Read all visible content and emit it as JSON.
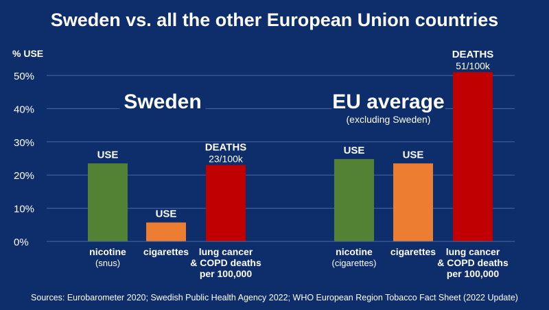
{
  "chart_data": {
    "type": "bar",
    "title": "Sweden vs. all the other European Union countries",
    "ylabel": "% USE",
    "ylim": [
      0,
      50
    ],
    "yticks": [
      "0%",
      "10%",
      "20%",
      "30%",
      "40%",
      "50%"
    ],
    "grid": true,
    "groups": [
      {
        "name": "Sweden",
        "subtitle": "",
        "bars": [
          {
            "value": 23.5,
            "color": "#548235",
            "top_label": "USE",
            "value_label": "",
            "xlabel": "nicotine",
            "xsublabel": "(snus)"
          },
          {
            "value": 5.7,
            "color": "#ed7d31",
            "top_label": "USE",
            "value_label": "",
            "xlabel": "cigarettes",
            "xsublabel": ""
          },
          {
            "value": 23,
            "color": "#c00000",
            "top_label": "DEATHS",
            "value_label": "23/100k",
            "xlabel": "lung cancer\n& COPD deaths\nper 100,000",
            "xsublabel": ""
          }
        ]
      },
      {
        "name": "EU average",
        "subtitle": "(excluding Sweden)",
        "bars": [
          {
            "value": 24.8,
            "color": "#548235",
            "top_label": "USE",
            "value_label": "",
            "xlabel": "nicotine",
            "xsublabel": "(cigarettes)"
          },
          {
            "value": 23.5,
            "color": "#ed7d31",
            "top_label": "USE",
            "value_label": "",
            "xlabel": "cigarettes",
            "xsublabel": ""
          },
          {
            "value": 51,
            "color": "#c00000",
            "top_label": "DEATHS",
            "value_label": "51/100k",
            "xlabel": "lung cancer\n& COPD deaths\nper 100,000",
            "xsublabel": ""
          }
        ]
      }
    ]
  },
  "sources": "Sources:  Eurobarometer 2020; Swedish Public Health Agency 2022; WHO European Region Tobacco Fact Sheet (2022 Update)",
  "colors": {
    "background": "#0d2d6b",
    "grid": "#4a67a8",
    "text": "#ffffff"
  }
}
